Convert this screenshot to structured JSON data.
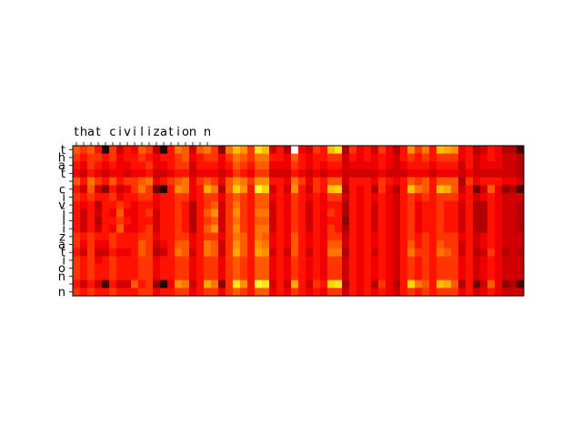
{
  "chart_data": {
    "type": "heatmap",
    "title": "",
    "xlabel": "",
    "ylabel": "",
    "x_tick_labels": [
      "t",
      "h",
      "a",
      "t",
      " ",
      "c",
      "i",
      "v",
      "i",
      "l",
      "i",
      "z",
      "a",
      "t",
      "i",
      "o",
      "n",
      " ",
      "n"
    ],
    "y_tick_labels": [
      "t",
      "h",
      "a",
      "t",
      " ",
      "c",
      "i",
      "v",
      "i",
      "l",
      "i",
      "z",
      "a",
      "t",
      "i",
      "o",
      "n",
      " ",
      "n"
    ],
    "num_columns": 62,
    "colormap": "hot",
    "colormap_stops": [
      "#0a0000",
      "#5c0000",
      "#b30000",
      "#ff0000",
      "#ff5a00",
      "#ff9e00",
      "#ffd200",
      "#ffff40",
      "#ffffff"
    ],
    "values": [
      [
        0.5,
        0.45,
        0.5,
        0.4,
        0.05,
        0.45,
        0.3,
        0.4,
        0.35,
        0.5,
        0.45,
        0.25,
        0.05,
        0.4,
        0.55,
        0.5,
        0.3,
        0.5,
        0.55,
        0.45,
        0.2,
        0.55,
        0.7,
        0.6,
        0.45,
        0.8,
        0.7,
        0.3,
        0.4,
        0.25,
        1.0,
        0.35,
        0.3,
        0.45,
        0.4,
        0.7,
        0.8,
        0.25,
        0.45,
        0.35,
        0.4,
        0.3,
        0.45,
        0.35,
        0.25,
        0.4,
        0.6,
        0.45,
        0.55,
        0.4,
        0.7,
        0.65,
        0.6,
        0.35,
        0.4,
        0.25,
        0.3,
        0.4,
        0.35,
        0.25,
        0.25,
        0.1
      ],
      [
        0.45,
        0.4,
        0.45,
        0.45,
        0.4,
        0.45,
        0.35,
        0.4,
        0.4,
        0.45,
        0.4,
        0.35,
        0.4,
        0.4,
        0.45,
        0.5,
        0.35,
        0.4,
        0.45,
        0.45,
        0.35,
        0.45,
        0.55,
        0.5,
        0.45,
        0.55,
        0.55,
        0.4,
        0.4,
        0.35,
        0.5,
        0.4,
        0.35,
        0.4,
        0.4,
        0.45,
        0.45,
        0.3,
        0.4,
        0.35,
        0.4,
        0.35,
        0.4,
        0.35,
        0.3,
        0.4,
        0.45,
        0.4,
        0.45,
        0.4,
        0.45,
        0.45,
        0.45,
        0.35,
        0.4,
        0.3,
        0.35,
        0.4,
        0.35,
        0.3,
        0.3,
        0.25
      ],
      [
        0.4,
        0.35,
        0.45,
        0.4,
        0.35,
        0.4,
        0.35,
        0.35,
        0.4,
        0.4,
        0.45,
        0.35,
        0.35,
        0.4,
        0.45,
        0.45,
        0.3,
        0.4,
        0.4,
        0.4,
        0.35,
        0.4,
        0.5,
        0.45,
        0.4,
        0.5,
        0.5,
        0.35,
        0.35,
        0.35,
        0.45,
        0.4,
        0.35,
        0.4,
        0.35,
        0.4,
        0.4,
        0.3,
        0.35,
        0.35,
        0.35,
        0.35,
        0.4,
        0.35,
        0.3,
        0.35,
        0.4,
        0.4,
        0.4,
        0.35,
        0.4,
        0.4,
        0.4,
        0.3,
        0.4,
        0.3,
        0.35,
        0.35,
        0.35,
        0.3,
        0.3,
        0.25
      ],
      [
        0.35,
        0.3,
        0.4,
        0.35,
        0.3,
        0.35,
        0.35,
        0.3,
        0.35,
        0.35,
        0.4,
        0.3,
        0.3,
        0.35,
        0.4,
        0.4,
        0.3,
        0.35,
        0.35,
        0.35,
        0.3,
        0.35,
        0.45,
        0.4,
        0.35,
        0.45,
        0.45,
        0.3,
        0.3,
        0.3,
        0.4,
        0.35,
        0.3,
        0.35,
        0.3,
        0.35,
        0.35,
        0.3,
        0.3,
        0.3,
        0.3,
        0.3,
        0.35,
        0.3,
        0.3,
        0.3,
        0.35,
        0.35,
        0.35,
        0.3,
        0.35,
        0.35,
        0.35,
        0.3,
        0.35,
        0.3,
        0.3,
        0.3,
        0.3,
        0.3,
        0.3,
        0.25
      ],
      [
        0.5,
        0.4,
        0.55,
        0.45,
        0.4,
        0.5,
        0.4,
        0.45,
        0.45,
        0.5,
        0.55,
        0.35,
        0.4,
        0.45,
        0.5,
        0.55,
        0.35,
        0.45,
        0.5,
        0.45,
        0.35,
        0.5,
        0.6,
        0.55,
        0.45,
        0.6,
        0.6,
        0.4,
        0.4,
        0.35,
        0.55,
        0.45,
        0.35,
        0.45,
        0.4,
        0.5,
        0.5,
        0.3,
        0.4,
        0.4,
        0.4,
        0.35,
        0.45,
        0.4,
        0.35,
        0.4,
        0.5,
        0.45,
        0.5,
        0.4,
        0.5,
        0.5,
        0.5,
        0.25,
        0.45,
        0.35,
        0.4,
        0.4,
        0.4,
        0.35,
        0.35,
        0.3
      ],
      [
        0.4,
        0.3,
        0.5,
        0.3,
        0.2,
        0.4,
        0.3,
        0.35,
        0.45,
        0.55,
        0.45,
        0.15,
        0.05,
        0.4,
        0.6,
        0.55,
        0.35,
        0.4,
        0.65,
        0.55,
        0.25,
        0.5,
        0.75,
        0.6,
        0.4,
        0.85,
        0.75,
        0.3,
        0.4,
        0.3,
        0.6,
        0.4,
        0.3,
        0.45,
        0.4,
        0.7,
        0.75,
        0.25,
        0.4,
        0.35,
        0.4,
        0.25,
        0.45,
        0.35,
        0.25,
        0.4,
        0.7,
        0.55,
        0.5,
        0.4,
        0.7,
        0.65,
        0.5,
        0.3,
        0.4,
        0.15,
        0.3,
        0.5,
        0.35,
        0.2,
        0.25,
        0.1
      ],
      [
        0.45,
        0.4,
        0.45,
        0.4,
        0.4,
        0.45,
        0.35,
        0.4,
        0.4,
        0.45,
        0.45,
        0.35,
        0.4,
        0.4,
        0.45,
        0.45,
        0.35,
        0.4,
        0.45,
        0.45,
        0.35,
        0.45,
        0.5,
        0.45,
        0.4,
        0.5,
        0.5,
        0.35,
        0.4,
        0.35,
        0.45,
        0.4,
        0.35,
        0.4,
        0.35,
        0.45,
        0.45,
        0.3,
        0.4,
        0.35,
        0.4,
        0.35,
        0.4,
        0.35,
        0.3,
        0.4,
        0.45,
        0.4,
        0.45,
        0.4,
        0.45,
        0.45,
        0.45,
        0.35,
        0.4,
        0.3,
        0.35,
        0.4,
        0.35,
        0.3,
        0.3,
        0.3
      ],
      [
        0.4,
        0.35,
        0.4,
        0.25,
        0.4,
        0.4,
        0.45,
        0.4,
        0.35,
        0.4,
        0.4,
        0.35,
        0.4,
        0.4,
        0.45,
        0.4,
        0.25,
        0.4,
        0.45,
        0.5,
        0.3,
        0.45,
        0.55,
        0.45,
        0.4,
        0.5,
        0.5,
        0.3,
        0.4,
        0.35,
        0.45,
        0.4,
        0.3,
        0.4,
        0.35,
        0.4,
        0.4,
        0.25,
        0.4,
        0.35,
        0.4,
        0.3,
        0.4,
        0.35,
        0.3,
        0.4,
        0.45,
        0.35,
        0.4,
        0.4,
        0.45,
        0.4,
        0.4,
        0.3,
        0.4,
        0.25,
        0.25,
        0.4,
        0.35,
        0.3,
        0.3,
        0.25
      ],
      [
        0.4,
        0.3,
        0.4,
        0.3,
        0.4,
        0.35,
        0.5,
        0.35,
        0.35,
        0.4,
        0.45,
        0.3,
        0.4,
        0.4,
        0.45,
        0.4,
        0.25,
        0.4,
        0.5,
        0.6,
        0.3,
        0.45,
        0.6,
        0.45,
        0.4,
        0.55,
        0.55,
        0.3,
        0.4,
        0.35,
        0.45,
        0.4,
        0.3,
        0.4,
        0.35,
        0.45,
        0.4,
        0.25,
        0.4,
        0.35,
        0.4,
        0.3,
        0.4,
        0.35,
        0.3,
        0.4,
        0.45,
        0.35,
        0.4,
        0.4,
        0.45,
        0.4,
        0.4,
        0.3,
        0.4,
        0.25,
        0.25,
        0.4,
        0.35,
        0.3,
        0.3,
        0.25
      ],
      [
        0.4,
        0.3,
        0.4,
        0.25,
        0.4,
        0.4,
        0.45,
        0.4,
        0.35,
        0.4,
        0.4,
        0.3,
        0.4,
        0.4,
        0.45,
        0.4,
        0.25,
        0.4,
        0.45,
        0.5,
        0.3,
        0.45,
        0.55,
        0.45,
        0.4,
        0.5,
        0.5,
        0.3,
        0.4,
        0.35,
        0.45,
        0.4,
        0.3,
        0.4,
        0.35,
        0.4,
        0.4,
        0.2,
        0.4,
        0.35,
        0.4,
        0.3,
        0.4,
        0.35,
        0.3,
        0.4,
        0.45,
        0.35,
        0.4,
        0.4,
        0.45,
        0.4,
        0.4,
        0.3,
        0.4,
        0.25,
        0.25,
        0.4,
        0.35,
        0.3,
        0.3,
        0.25
      ],
      [
        0.4,
        0.3,
        0.4,
        0.3,
        0.4,
        0.35,
        0.5,
        0.35,
        0.35,
        0.4,
        0.45,
        0.3,
        0.4,
        0.4,
        0.45,
        0.4,
        0.25,
        0.4,
        0.5,
        0.6,
        0.3,
        0.45,
        0.6,
        0.45,
        0.4,
        0.55,
        0.55,
        0.3,
        0.4,
        0.35,
        0.45,
        0.4,
        0.3,
        0.4,
        0.35,
        0.45,
        0.4,
        0.25,
        0.4,
        0.35,
        0.4,
        0.3,
        0.4,
        0.35,
        0.3,
        0.4,
        0.45,
        0.35,
        0.4,
        0.4,
        0.45,
        0.4,
        0.4,
        0.3,
        0.4,
        0.25,
        0.25,
        0.4,
        0.35,
        0.3,
        0.3,
        0.25
      ],
      [
        0.45,
        0.4,
        0.45,
        0.4,
        0.4,
        0.45,
        0.4,
        0.4,
        0.4,
        0.45,
        0.45,
        0.35,
        0.4,
        0.4,
        0.45,
        0.45,
        0.35,
        0.4,
        0.45,
        0.45,
        0.35,
        0.45,
        0.55,
        0.5,
        0.4,
        0.55,
        0.5,
        0.35,
        0.4,
        0.35,
        0.5,
        0.4,
        0.35,
        0.4,
        0.35,
        0.45,
        0.45,
        0.3,
        0.4,
        0.35,
        0.4,
        0.35,
        0.4,
        0.35,
        0.3,
        0.4,
        0.45,
        0.4,
        0.45,
        0.4,
        0.45,
        0.45,
        0.45,
        0.35,
        0.4,
        0.3,
        0.35,
        0.4,
        0.35,
        0.3,
        0.3,
        0.3
      ],
      [
        0.45,
        0.35,
        0.45,
        0.35,
        0.35,
        0.45,
        0.4,
        0.4,
        0.4,
        0.5,
        0.45,
        0.3,
        0.35,
        0.4,
        0.5,
        0.5,
        0.35,
        0.4,
        0.55,
        0.5,
        0.3,
        0.45,
        0.6,
        0.5,
        0.4,
        0.6,
        0.55,
        0.35,
        0.4,
        0.35,
        0.5,
        0.4,
        0.35,
        0.4,
        0.35,
        0.5,
        0.5,
        0.3,
        0.4,
        0.35,
        0.4,
        0.35,
        0.4,
        0.35,
        0.3,
        0.4,
        0.5,
        0.4,
        0.45,
        0.4,
        0.5,
        0.45,
        0.45,
        0.3,
        0.4,
        0.3,
        0.35,
        0.4,
        0.35,
        0.3,
        0.3,
        0.3
      ],
      [
        0.4,
        0.3,
        0.45,
        0.3,
        0.3,
        0.4,
        0.35,
        0.35,
        0.4,
        0.5,
        0.45,
        0.25,
        0.3,
        0.4,
        0.55,
        0.5,
        0.3,
        0.4,
        0.55,
        0.5,
        0.3,
        0.45,
        0.65,
        0.5,
        0.4,
        0.65,
        0.6,
        0.3,
        0.4,
        0.3,
        0.5,
        0.4,
        0.3,
        0.4,
        0.35,
        0.55,
        0.55,
        0.25,
        0.4,
        0.35,
        0.4,
        0.3,
        0.4,
        0.35,
        0.3,
        0.4,
        0.55,
        0.45,
        0.45,
        0.4,
        0.55,
        0.5,
        0.45,
        0.3,
        0.4,
        0.25,
        0.3,
        0.45,
        0.35,
        0.25,
        0.3,
        0.25
      ],
      [
        0.45,
        0.4,
        0.45,
        0.35,
        0.4,
        0.45,
        0.4,
        0.4,
        0.4,
        0.45,
        0.45,
        0.35,
        0.4,
        0.4,
        0.45,
        0.45,
        0.35,
        0.4,
        0.45,
        0.45,
        0.35,
        0.45,
        0.5,
        0.45,
        0.4,
        0.5,
        0.5,
        0.35,
        0.4,
        0.35,
        0.45,
        0.4,
        0.35,
        0.4,
        0.35,
        0.45,
        0.45,
        0.3,
        0.4,
        0.35,
        0.4,
        0.35,
        0.4,
        0.35,
        0.3,
        0.4,
        0.45,
        0.4,
        0.45,
        0.4,
        0.45,
        0.45,
        0.45,
        0.35,
        0.4,
        0.3,
        0.35,
        0.4,
        0.35,
        0.3,
        0.3,
        0.3
      ],
      [
        0.45,
        0.4,
        0.45,
        0.4,
        0.4,
        0.45,
        0.4,
        0.4,
        0.4,
        0.45,
        0.45,
        0.35,
        0.4,
        0.4,
        0.45,
        0.45,
        0.35,
        0.4,
        0.45,
        0.45,
        0.35,
        0.45,
        0.5,
        0.45,
        0.4,
        0.5,
        0.5,
        0.35,
        0.4,
        0.35,
        0.45,
        0.4,
        0.35,
        0.4,
        0.35,
        0.45,
        0.45,
        0.3,
        0.4,
        0.35,
        0.4,
        0.35,
        0.4,
        0.35,
        0.3,
        0.4,
        0.45,
        0.4,
        0.45,
        0.4,
        0.45,
        0.45,
        0.45,
        0.35,
        0.4,
        0.3,
        0.35,
        0.4,
        0.35,
        0.3,
        0.3,
        0.3
      ],
      [
        0.45,
        0.4,
        0.45,
        0.4,
        0.4,
        0.45,
        0.4,
        0.4,
        0.4,
        0.45,
        0.45,
        0.35,
        0.4,
        0.4,
        0.45,
        0.45,
        0.35,
        0.4,
        0.45,
        0.45,
        0.35,
        0.45,
        0.5,
        0.45,
        0.4,
        0.5,
        0.5,
        0.35,
        0.4,
        0.35,
        0.45,
        0.4,
        0.35,
        0.4,
        0.35,
        0.45,
        0.45,
        0.3,
        0.4,
        0.35,
        0.4,
        0.35,
        0.4,
        0.35,
        0.3,
        0.4,
        0.45,
        0.4,
        0.45,
        0.4,
        0.45,
        0.45,
        0.45,
        0.35,
        0.4,
        0.3,
        0.35,
        0.4,
        0.35,
        0.3,
        0.3,
        0.3
      ],
      [
        0.4,
        0.3,
        0.4,
        0.3,
        0.1,
        0.4,
        0.3,
        0.3,
        0.5,
        0.4,
        0.45,
        0.2,
        0.05,
        0.35,
        0.6,
        0.55,
        0.3,
        0.4,
        0.65,
        0.55,
        0.2,
        0.45,
        0.8,
        0.6,
        0.4,
        0.85,
        0.8,
        0.3,
        0.4,
        0.3,
        0.65,
        0.4,
        0.3,
        0.45,
        0.4,
        0.75,
        0.8,
        0.25,
        0.4,
        0.35,
        0.4,
        0.25,
        0.45,
        0.35,
        0.25,
        0.4,
        0.75,
        0.55,
        0.5,
        0.4,
        0.7,
        0.65,
        0.5,
        0.25,
        0.4,
        0.15,
        0.3,
        0.5,
        0.35,
        0.2,
        0.25,
        0.1
      ],
      [
        0.45,
        0.4,
        0.45,
        0.4,
        0.4,
        0.45,
        0.4,
        0.4,
        0.4,
        0.45,
        0.45,
        0.35,
        0.4,
        0.4,
        0.45,
        0.45,
        0.35,
        0.4,
        0.45,
        0.45,
        0.35,
        0.45,
        0.5,
        0.45,
        0.4,
        0.5,
        0.5,
        0.35,
        0.4,
        0.35,
        0.45,
        0.4,
        0.35,
        0.4,
        0.35,
        0.45,
        0.45,
        0.3,
        0.4,
        0.35,
        0.4,
        0.35,
        0.4,
        0.35,
        0.3,
        0.4,
        0.45,
        0.4,
        0.45,
        0.4,
        0.45,
        0.45,
        0.45,
        0.35,
        0.4,
        0.3,
        0.35,
        0.4,
        0.35,
        0.3,
        0.3,
        0.3
      ]
    ]
  }
}
